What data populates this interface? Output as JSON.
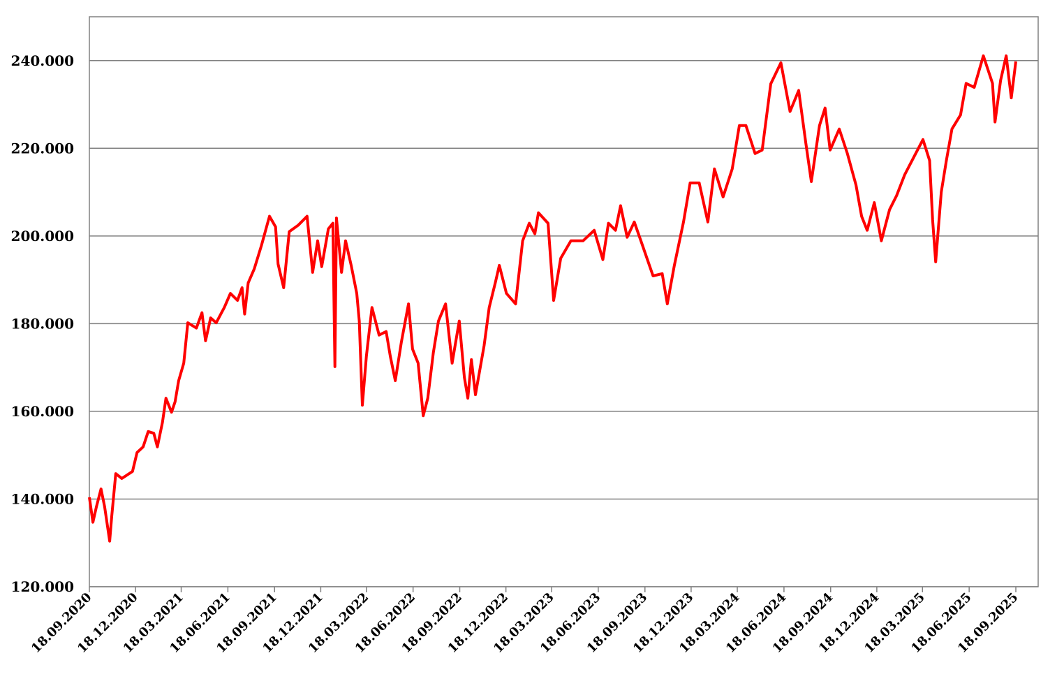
{
  "chart_data": {
    "type": "line",
    "x": [
      "2020-09-18",
      "2020-09-25",
      "2020-10-02",
      "2020-10-11",
      "2020-10-18",
      "2020-10-28",
      "2020-11-01",
      "2020-11-09",
      "2020-11-21",
      "2020-12-12",
      "2020-12-21",
      "2021-01-02",
      "2021-01-12",
      "2021-01-23",
      "2021-01-30",
      "2021-02-09",
      "2021-02-16",
      "2021-02-27",
      "2021-03-06",
      "2021-03-13",
      "2021-03-23",
      "2021-03-31",
      "2021-04-17",
      "2021-04-28",
      "2021-05-05",
      "2021-05-15",
      "2021-05-26",
      "2021-06-11",
      "2021-06-23",
      "2021-07-07",
      "2021-07-16",
      "2021-07-21",
      "2021-07-28",
      "2021-08-09",
      "2021-08-23",
      "2021-09-08",
      "2021-09-20",
      "2021-09-25",
      "2021-10-06",
      "2021-10-17",
      "2021-11-04",
      "2021-11-21",
      "2021-12-02",
      "2021-12-12",
      "2021-12-20",
      "2022-01-02",
      "2022-01-11",
      "2022-01-15",
      "2022-01-18",
      "2022-01-28",
      "2022-02-05",
      "2022-02-16",
      "2022-02-27",
      "2022-03-04",
      "2022-03-10",
      "2022-03-18",
      "2022-03-29",
      "2022-04-12",
      "2022-04-26",
      "2022-05-04",
      "2022-05-14",
      "2022-05-26",
      "2022-06-09",
      "2022-06-17",
      "2022-06-28",
      "2022-07-08",
      "2022-07-17",
      "2022-07-28",
      "2022-08-07",
      "2022-08-21",
      "2022-09-03",
      "2022-09-17",
      "2022-09-27",
      "2022-10-04",
      "2022-10-11",
      "2022-10-19",
      "2022-11-05",
      "2022-11-15",
      "2022-11-27",
      "2022-12-05",
      "2022-12-19",
      "2023-01-06",
      "2023-01-20",
      "2023-02-02",
      "2023-02-13",
      "2023-02-20",
      "2023-03-11",
      "2023-03-22",
      "2023-04-05",
      "2023-04-25",
      "2023-05-19",
      "2023-06-10",
      "2023-06-27",
      "2023-07-08",
      "2023-07-22",
      "2023-08-01",
      "2023-08-14",
      "2023-08-28",
      "2023-09-10",
      "2023-10-04",
      "2023-10-22",
      "2023-11-01",
      "2023-11-15",
      "2023-12-03",
      "2023-12-16",
      "2024-01-03",
      "2024-01-20",
      "2024-02-02",
      "2024-02-19",
      "2024-03-08",
      "2024-03-22",
      "2024-04-04",
      "2024-04-22",
      "2024-05-06",
      "2024-05-23",
      "2024-06-12",
      "2024-06-30",
      "2024-07-17",
      "2024-07-31",
      "2024-08-11",
      "2024-08-27",
      "2024-09-07",
      "2024-09-17",
      "2024-10-05",
      "2024-10-21",
      "2024-11-07",
      "2024-11-18",
      "2024-11-29",
      "2024-12-13",
      "2024-12-27",
      "2025-01-12",
      "2025-01-26",
      "2025-02-11",
      "2025-03-01",
      "2025-03-19",
      "2025-04-01",
      "2025-04-07",
      "2025-04-13",
      "2025-04-24",
      "2025-05-04",
      "2025-05-15",
      "2025-06-01",
      "2025-06-12",
      "2025-06-28",
      "2025-07-16",
      "2025-08-03",
      "2025-08-08",
      "2025-08-19",
      "2025-08-30",
      "2025-09-09",
      "2025-09-18"
    ],
    "series": [
      {
        "color": "#ff0000",
        "values": [
          140400,
          134700,
          138300,
          142300,
          138300,
          130400,
          136000,
          145800,
          144700,
          146300,
          150600,
          151900,
          155400,
          155000,
          151900,
          157500,
          163000,
          159800,
          162200,
          167000,
          171000,
          180200,
          179000,
          182500,
          176100,
          181300,
          180200,
          183700,
          186900,
          185300,
          188200,
          182200,
          189300,
          192500,
          197800,
          204500,
          202100,
          193600,
          188200,
          201000,
          202500,
          204500,
          191700,
          198900,
          193000,
          201600,
          202900,
          170200,
          204100,
          191700,
          198900,
          193300,
          186900,
          180600,
          161400,
          172600,
          183700,
          177400,
          178200,
          172600,
          167000,
          175800,
          184500,
          174200,
          171000,
          159000,
          163000,
          173400,
          180600,
          184500,
          171000,
          180600,
          167800,
          163000,
          171800,
          163800,
          175000,
          183700,
          189300,
          193300,
          186900,
          184500,
          198900,
          202900,
          200500,
          205300,
          202900,
          185300,
          194900,
          198900,
          198900,
          201300,
          194600,
          202900,
          201300,
          206900,
          199700,
          203200,
          198900,
          190900,
          191400,
          184500,
          193300,
          203200,
          212100,
          212100,
          203200,
          215300,
          208900,
          215300,
          225200,
          225200,
          218800,
          219600,
          234700,
          239500,
          228400,
          233200,
          221200,
          212400,
          225200,
          229200,
          219600,
          224400,
          218800,
          211600,
          204500,
          201300,
          207600,
          198900,
          206000,
          209200,
          214000,
          218000,
          222000,
          217200,
          203700,
          194100,
          210000,
          217200,
          224400,
          227600,
          234800,
          233900,
          241100,
          234800,
          226000,
          235500,
          241100,
          231500,
          239800
        ]
      }
    ],
    "xlim": [
      "2020-09-18",
      "2025-11-01"
    ],
    "xticks": [
      {
        "value": "2020-09-18",
        "label": "18.09.2020"
      },
      {
        "value": "2020-12-18",
        "label": "18.12.2020"
      },
      {
        "value": "2021-03-18",
        "label": "18.03.2021"
      },
      {
        "value": "2021-06-18",
        "label": "18.06.2021"
      },
      {
        "value": "2021-09-18",
        "label": "18.09.2021"
      },
      {
        "value": "2021-12-18",
        "label": "18.12.2021"
      },
      {
        "value": "2022-03-18",
        "label": "18.03.2022"
      },
      {
        "value": "2022-06-18",
        "label": "18.06.2022"
      },
      {
        "value": "2022-09-18",
        "label": "18.09.2022"
      },
      {
        "value": "2022-12-18",
        "label": "18.12.2022"
      },
      {
        "value": "2023-03-18",
        "label": "18.03.2023"
      },
      {
        "value": "2023-06-18",
        "label": "18.06.2023"
      },
      {
        "value": "2023-09-18",
        "label": "18.09.2023"
      },
      {
        "value": "2023-12-18",
        "label": "18.12.2023"
      },
      {
        "value": "2024-03-18",
        "label": "18.03.2024"
      },
      {
        "value": "2024-06-18",
        "label": "18.06.2024"
      },
      {
        "value": "2024-09-18",
        "label": "18.09.2024"
      },
      {
        "value": "2024-12-18",
        "label": "18.12.2024"
      },
      {
        "value": "2025-03-18",
        "label": "18.03.2025"
      },
      {
        "value": "2025-06-18",
        "label": "18.06.2025"
      },
      {
        "value": "2025-09-18",
        "label": "18.09.2025"
      }
    ],
    "ylim": [
      120000,
      250000
    ],
    "yticks": [
      {
        "value": 120000,
        "label": "120.000"
      },
      {
        "value": 140000,
        "label": "140.000"
      },
      {
        "value": 160000,
        "label": "160.000"
      },
      {
        "value": 180000,
        "label": "180.000"
      },
      {
        "value": 200000,
        "label": "200.000"
      },
      {
        "value": 220000,
        "label": "220.000"
      },
      {
        "value": 240000,
        "label": "240.000"
      }
    ],
    "grid": true
  }
}
